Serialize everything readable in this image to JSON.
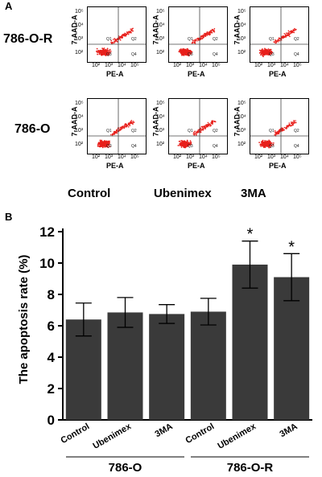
{
  "panel_a": {
    "letter": "A",
    "rows": [
      "786-O-R",
      "786-O"
    ],
    "columns": [
      "Control",
      "Ubenimex",
      "3MA"
    ],
    "x_axis_label": "PE-A",
    "y_axis_label": "7-AAD-A",
    "x_ticks": [
      "10²",
      "10³",
      "10⁴",
      "10⁵"
    ],
    "y_ticks": [
      "10²",
      "10³",
      "10⁴",
      "10⁵"
    ],
    "quadrants": [
      "Q1",
      "Q2",
      "Q3",
      "Q4"
    ],
    "dot_color": "#e8201c"
  },
  "chart_data": {
    "panel_letter": "B",
    "type": "bar",
    "ylabel": "The apoptosis rate (%)",
    "ylim": [
      0,
      12
    ],
    "yticks": [
      0,
      2,
      4,
      6,
      8,
      10,
      12
    ],
    "categories": [
      "Control",
      "Ubenimex",
      "3MA",
      "Control",
      "Ubenimex",
      "3MA"
    ],
    "values": [
      6.4,
      6.85,
      6.75,
      6.9,
      9.9,
      9.1
    ],
    "errors": [
      1.05,
      0.95,
      0.6,
      0.85,
      1.5,
      1.5
    ],
    "significance": [
      "",
      "",
      "",
      "",
      "*",
      "*"
    ],
    "groups": [
      {
        "name": "786-O",
        "members": [
          0,
          1,
          2
        ]
      },
      {
        "name": "786-O-R",
        "members": [
          3,
          4,
          5
        ]
      }
    ],
    "bar_color": "#3a3a3a",
    "grid": false,
    "legend": "none"
  }
}
